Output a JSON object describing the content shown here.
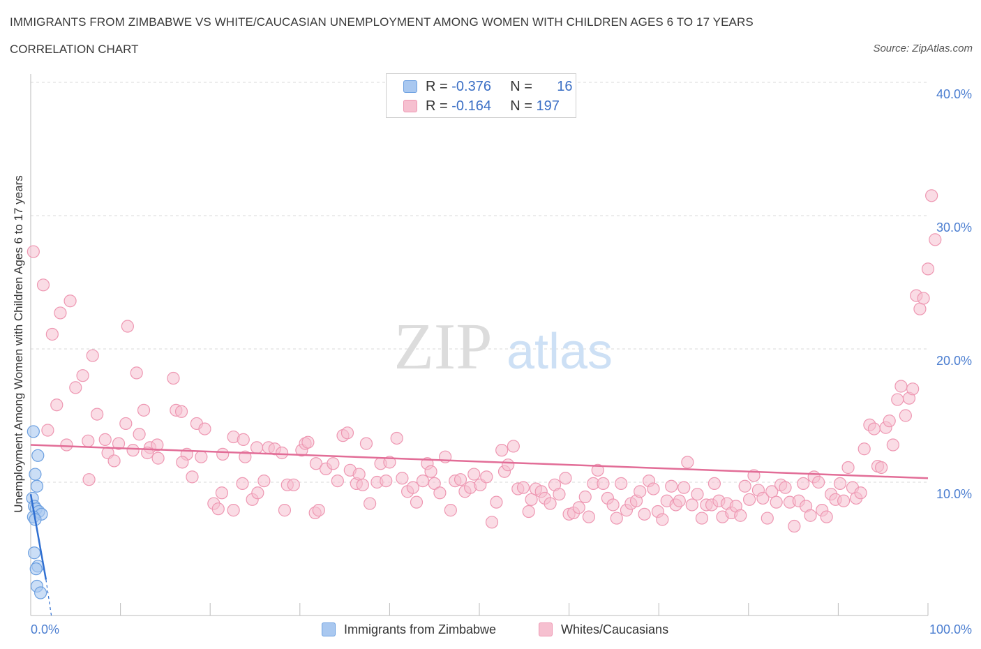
{
  "header": {
    "title": "IMMIGRANTS FROM ZIMBABWE VS WHITE/CAUCASIAN UNEMPLOYMENT AMONG WOMEN WITH CHILDREN AGES 6 TO 17 YEARS",
    "subtitle": "CORRELATION CHART",
    "source": "Source: ZipAtlas.com"
  },
  "watermark": {
    "zip": "ZIP",
    "atlas": "atlas"
  },
  "legend": {
    "rows": [
      {
        "r_label": "R =",
        "r_value": "-0.376",
        "n_label": "N =",
        "n_value": "16"
      },
      {
        "r_label": "R =",
        "r_value": "-0.164",
        "n_label": "N =",
        "n_value": "197"
      }
    ]
  },
  "colors": {
    "blue_fill": "#a9c8f0",
    "blue_stroke": "#6b9fe0",
    "blue_line": "#2f6fd1",
    "pink_fill": "#f6c0d0",
    "pink_stroke": "#ee97b2",
    "pink_line": "#e26d97",
    "axis_text": "#4a7dd0",
    "grid": "#d8d8d8"
  },
  "chart_data": {
    "type": "scatter",
    "title": "IMMIGRANTS FROM ZIMBABWE VS WHITE/CAUCASIAN UNEMPLOYMENT AMONG WOMEN WITH CHILDREN AGES 6 TO 17 YEARS",
    "xlabel": "",
    "ylabel": "Unemployment Among Women with Children Ages 6 to 17 years",
    "xlim": [
      0,
      100
    ],
    "ylim": [
      0,
      40
    ],
    "x_tick_labels": [
      "0.0%",
      "100.0%"
    ],
    "y_ticks": [
      10,
      20,
      30,
      40
    ],
    "y_tick_labels": [
      "10.0%",
      "20.0%",
      "30.0%",
      "40.0%"
    ],
    "grid": true,
    "series": [
      {
        "name": "Immigrants from Zimbabwe",
        "color": "blue",
        "trend": {
          "x": [
            0,
            1.7
          ],
          "y": [
            9.1,
            2.7
          ],
          "dashed_to": [
            2.3,
            0
          ]
        },
        "points": [
          [
            0.3,
            13.8
          ],
          [
            0.8,
            12.0
          ],
          [
            0.5,
            10.6
          ],
          [
            0.7,
            9.7
          ],
          [
            0.2,
            8.8
          ],
          [
            0.4,
            8.2
          ],
          [
            0.6,
            8.0
          ],
          [
            0.9,
            7.8
          ],
          [
            1.2,
            7.6
          ],
          [
            0.3,
            7.4
          ],
          [
            0.5,
            7.2
          ],
          [
            0.4,
            4.7
          ],
          [
            0.8,
            3.7
          ],
          [
            0.6,
            3.5
          ],
          [
            0.7,
            2.2
          ],
          [
            1.1,
            1.7
          ]
        ]
      },
      {
        "name": "Whites/Caucasians",
        "color": "pink",
        "trend": {
          "x": [
            0,
            100
          ],
          "y": [
            12.8,
            10.3
          ]
        },
        "points": [
          [
            0.3,
            27.3
          ],
          [
            1.4,
            24.8
          ],
          [
            2.4,
            21.1
          ],
          [
            3.3,
            22.7
          ],
          [
            4.4,
            23.6
          ],
          [
            10.8,
            21.7
          ],
          [
            6.9,
            19.5
          ],
          [
            5.0,
            17.1
          ],
          [
            5.8,
            18.0
          ],
          [
            2.9,
            15.8
          ],
          [
            7.4,
            15.1
          ],
          [
            1.9,
            13.9
          ],
          [
            11.8,
            18.2
          ],
          [
            15.9,
            17.8
          ],
          [
            6.4,
            13.1
          ],
          [
            8.3,
            13.2
          ],
          [
            10.6,
            14.4
          ],
          [
            12.6,
            15.4
          ],
          [
            4.0,
            12.8
          ],
          [
            8.6,
            12.2
          ],
          [
            9.8,
            12.9
          ],
          [
            11.4,
            12.4
          ],
          [
            12.1,
            13.6
          ],
          [
            13.3,
            12.6
          ],
          [
            14.1,
            12.8
          ],
          [
            16.2,
            15.4
          ],
          [
            16.8,
            15.3
          ],
          [
            17.4,
            12.1
          ],
          [
            18.5,
            14.4
          ],
          [
            19.4,
            14.0
          ],
          [
            6.5,
            10.2
          ],
          [
            9.3,
            11.6
          ],
          [
            13.0,
            12.2
          ],
          [
            14.2,
            11.8
          ],
          [
            16.9,
            11.5
          ],
          [
            18.0,
            10.4
          ],
          [
            19.0,
            11.9
          ],
          [
            21.4,
            12.1
          ],
          [
            22.6,
            13.4
          ],
          [
            23.9,
            11.9
          ],
          [
            23.7,
            13.2
          ],
          [
            25.2,
            12.6
          ],
          [
            20.4,
            8.4
          ],
          [
            20.9,
            8.0
          ],
          [
            21.3,
            9.2
          ],
          [
            22.6,
            7.9
          ],
          [
            23.6,
            9.9
          ],
          [
            24.7,
            8.7
          ],
          [
            25.3,
            9.2
          ],
          [
            26.0,
            10.1
          ],
          [
            26.5,
            12.6
          ],
          [
            27.2,
            12.5
          ],
          [
            28.0,
            12.2
          ],
          [
            28.6,
            9.8
          ],
          [
            28.3,
            7.9
          ],
          [
            29.3,
            9.8
          ],
          [
            30.2,
            12.4
          ],
          [
            30.6,
            12.9
          ],
          [
            30.9,
            13.0
          ],
          [
            31.8,
            11.4
          ],
          [
            31.7,
            7.7
          ],
          [
            32.1,
            7.9
          ],
          [
            32.9,
            11.0
          ],
          [
            33.7,
            11.4
          ],
          [
            34.2,
            10.1
          ],
          [
            34.8,
            13.5
          ],
          [
            35.3,
            13.7
          ],
          [
            35.6,
            10.9
          ],
          [
            36.3,
            9.9
          ],
          [
            36.6,
            10.6
          ],
          [
            37.0,
            9.8
          ],
          [
            37.4,
            12.9
          ],
          [
            37.8,
            8.4
          ],
          [
            38.6,
            10.0
          ],
          [
            39.0,
            11.4
          ],
          [
            39.6,
            10.1
          ],
          [
            40.0,
            11.5
          ],
          [
            40.8,
            13.3
          ],
          [
            41.4,
            10.3
          ],
          [
            42.0,
            9.3
          ],
          [
            42.6,
            9.6
          ],
          [
            43.0,
            8.5
          ],
          [
            43.7,
            10.1
          ],
          [
            44.2,
            11.4
          ],
          [
            44.6,
            10.8
          ],
          [
            45.0,
            9.9
          ],
          [
            45.6,
            9.2
          ],
          [
            46.2,
            11.9
          ],
          [
            46.8,
            7.9
          ],
          [
            47.3,
            10.1
          ],
          [
            47.9,
            10.2
          ],
          [
            48.4,
            9.3
          ],
          [
            49.0,
            9.6
          ],
          [
            49.4,
            10.6
          ],
          [
            50.1,
            9.8
          ],
          [
            50.8,
            10.4
          ],
          [
            51.4,
            7.0
          ],
          [
            51.9,
            8.5
          ],
          [
            52.5,
            12.4
          ],
          [
            52.8,
            10.8
          ],
          [
            53.2,
            11.3
          ],
          [
            53.8,
            12.7
          ],
          [
            54.3,
            9.5
          ],
          [
            54.9,
            9.6
          ],
          [
            55.5,
            7.8
          ],
          [
            55.8,
            8.7
          ],
          [
            56.3,
            9.5
          ],
          [
            56.9,
            9.3
          ],
          [
            57.3,
            8.8
          ],
          [
            57.9,
            8.4
          ],
          [
            58.4,
            9.8
          ],
          [
            58.9,
            9.1
          ],
          [
            59.6,
            10.3
          ],
          [
            60.0,
            7.6
          ],
          [
            60.5,
            7.7
          ],
          [
            61.1,
            8.1
          ],
          [
            61.8,
            8.9
          ],
          [
            62.2,
            7.4
          ],
          [
            62.7,
            9.9
          ],
          [
            63.2,
            10.9
          ],
          [
            63.8,
            9.9
          ],
          [
            64.3,
            8.8
          ],
          [
            64.9,
            8.3
          ],
          [
            65.3,
            7.3
          ],
          [
            65.8,
            9.9
          ],
          [
            66.4,
            7.9
          ],
          [
            66.9,
            8.4
          ],
          [
            67.5,
            8.6
          ],
          [
            67.9,
            9.3
          ],
          [
            68.4,
            7.6
          ],
          [
            68.9,
            10.1
          ],
          [
            69.4,
            9.5
          ],
          [
            69.9,
            7.8
          ],
          [
            70.4,
            7.2
          ],
          [
            70.9,
            8.6
          ],
          [
            71.4,
            9.7
          ],
          [
            71.9,
            8.3
          ],
          [
            72.3,
            8.6
          ],
          [
            72.8,
            9.6
          ],
          [
            73.2,
            11.5
          ],
          [
            73.7,
            8.3
          ],
          [
            74.3,
            9.1
          ],
          [
            74.8,
            7.3
          ],
          [
            75.3,
            8.3
          ],
          [
            75.9,
            8.3
          ],
          [
            76.2,
            9.9
          ],
          [
            76.7,
            8.6
          ],
          [
            77.1,
            7.4
          ],
          [
            77.6,
            8.4
          ],
          [
            78.1,
            7.7
          ],
          [
            78.6,
            8.2
          ],
          [
            79.1,
            7.5
          ],
          [
            79.6,
            9.7
          ],
          [
            80.1,
            8.7
          ],
          [
            80.6,
            10.5
          ],
          [
            81.1,
            9.4
          ],
          [
            81.6,
            8.8
          ],
          [
            82.1,
            7.3
          ],
          [
            82.6,
            9.3
          ],
          [
            83.1,
            8.5
          ],
          [
            83.6,
            9.8
          ],
          [
            84.1,
            9.6
          ],
          [
            84.6,
            8.5
          ],
          [
            85.1,
            6.7
          ],
          [
            85.6,
            8.6
          ],
          [
            86.1,
            9.9
          ],
          [
            86.4,
            8.2
          ],
          [
            86.9,
            7.5
          ],
          [
            87.3,
            10.4
          ],
          [
            87.8,
            10.0
          ],
          [
            88.2,
            7.9
          ],
          [
            88.7,
            7.4
          ],
          [
            89.2,
            9.1
          ],
          [
            89.7,
            8.7
          ],
          [
            90.2,
            9.9
          ],
          [
            90.6,
            8.6
          ],
          [
            91.1,
            11.1
          ],
          [
            91.6,
            9.6
          ],
          [
            92.0,
            8.8
          ],
          [
            92.5,
            9.2
          ],
          [
            92.9,
            12.5
          ],
          [
            93.5,
            14.3
          ],
          [
            94.0,
            14.0
          ],
          [
            94.4,
            11.2
          ],
          [
            94.8,
            11.1
          ],
          [
            95.3,
            14.1
          ],
          [
            95.7,
            14.6
          ],
          [
            96.1,
            12.8
          ],
          [
            96.6,
            16.2
          ],
          [
            97.0,
            17.2
          ],
          [
            97.5,
            15.0
          ],
          [
            97.9,
            16.3
          ],
          [
            98.3,
            17.0
          ],
          [
            98.7,
            24.0
          ],
          [
            99.1,
            23.0
          ],
          [
            99.5,
            23.8
          ],
          [
            100.0,
            26.0
          ],
          [
            100.4,
            31.5
          ],
          [
            100.8,
            28.2
          ]
        ]
      }
    ]
  },
  "bottom_legend": {
    "items": [
      {
        "label": "Immigrants from Zimbabwe"
      },
      {
        "label": "Whites/Caucasians"
      }
    ]
  }
}
